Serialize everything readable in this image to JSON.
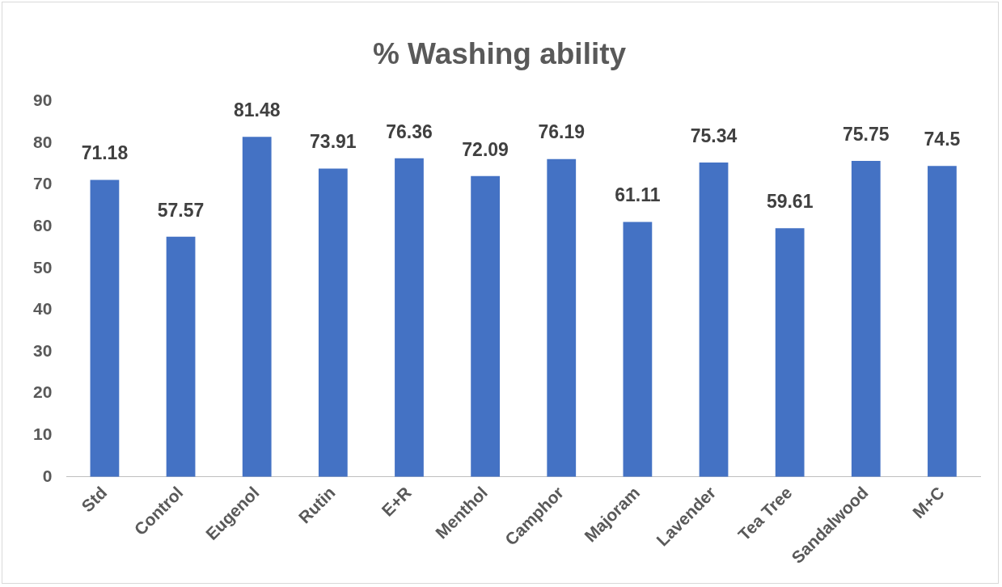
{
  "chart_data": {
    "type": "bar",
    "title": "% Washing ability",
    "categories": [
      "Std",
      "Control",
      "Eugenol",
      "Rutin",
      "E+R",
      "Menthol",
      "Camphor",
      "Majoram",
      "Lavender",
      "Tea Tree",
      "Sandalwood",
      "M+C"
    ],
    "values": [
      71.18,
      57.57,
      81.48,
      73.91,
      76.36,
      72.09,
      76.19,
      61.11,
      75.34,
      59.61,
      75.75,
      74.5
    ],
    "color": "#4472c4",
    "ylim": [
      0,
      90
    ],
    "yticks": [
      0,
      10,
      20,
      30,
      40,
      50,
      60,
      70,
      80,
      90
    ],
    "grid": false,
    "data_labels": true
  }
}
